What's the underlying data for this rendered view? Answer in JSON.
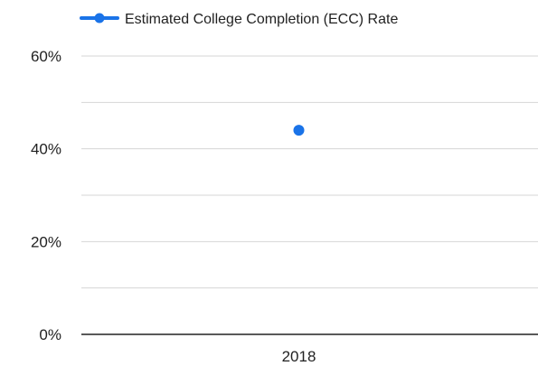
{
  "chart_data": {
    "type": "scatter",
    "title": "",
    "xlabel": "",
    "ylabel": "",
    "categories": [
      "2018"
    ],
    "series": [
      {
        "name": "Estimated College Completion (ECC) Rate",
        "values": [
          44
        ],
        "color": "#1a73e8"
      }
    ],
    "ylim": [
      0,
      60
    ],
    "y_ticks": [
      {
        "value": 0,
        "label": "0%"
      },
      {
        "value": 20,
        "label": "20%"
      },
      {
        "value": 40,
        "label": "40%"
      },
      {
        "value": 60,
        "label": "60%"
      }
    ],
    "minor_gridlines": [
      10,
      30,
      50
    ],
    "grid": true,
    "legend_position": "top-left"
  }
}
